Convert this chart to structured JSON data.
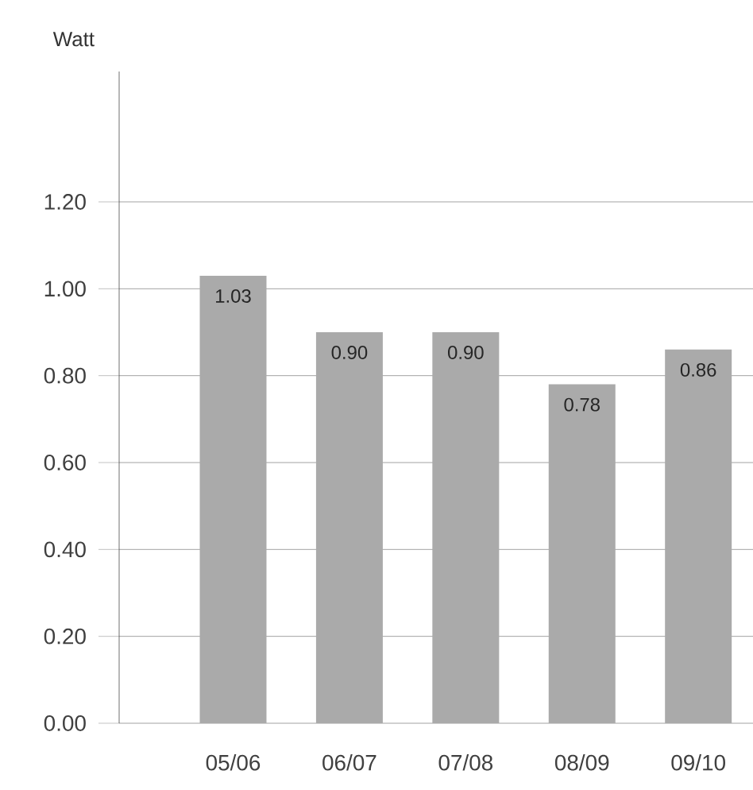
{
  "chart_data": {
    "type": "bar",
    "ylabel": "Watt",
    "categories": [
      "05/06",
      "06/07",
      "07/08",
      "08/09",
      "09/10"
    ],
    "values": [
      1.03,
      0.9,
      0.9,
      0.78,
      0.86
    ],
    "value_labels": [
      "1.03",
      "0.90",
      "0.90",
      "0.78",
      "0.86"
    ],
    "color": "#aaaaaa",
    "ylim": [
      0,
      1.5
    ],
    "yticks": [
      {
        "value": 0,
        "label": "0.00"
      },
      {
        "value": 0.2,
        "label": "0.20"
      },
      {
        "value": 0.4,
        "label": "0.40"
      },
      {
        "value": 0.6,
        "label": "0.60"
      },
      {
        "value": 0.8,
        "label": "0.80"
      },
      {
        "value": 1.0,
        "label": "1.00"
      },
      {
        "value": 1.2,
        "label": "1.20"
      }
    ],
    "grid": "y"
  }
}
